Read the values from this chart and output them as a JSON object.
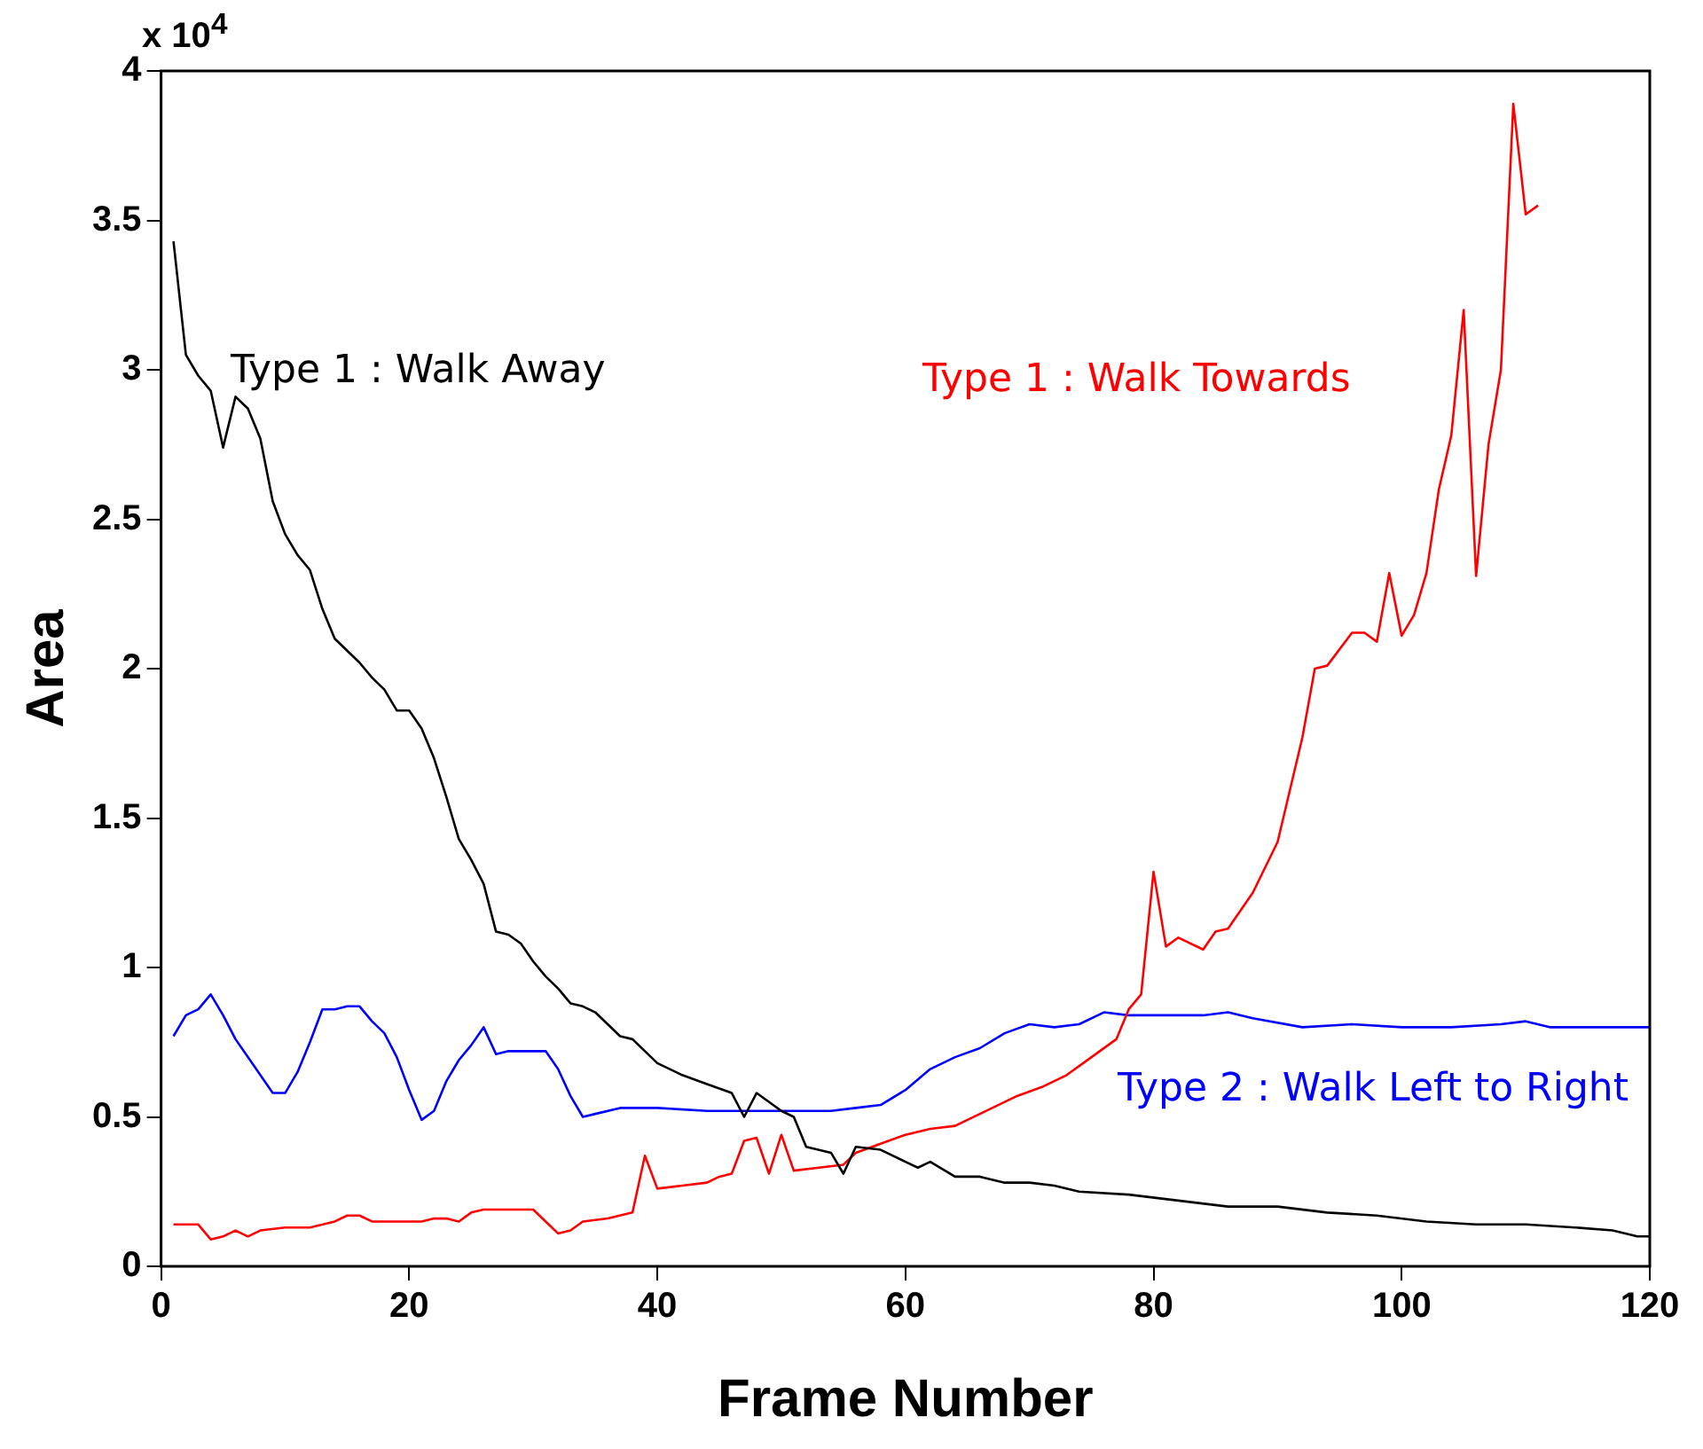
{
  "chart_data": {
    "type": "line",
    "xlabel": "Frame Number",
    "ylabel": "Area",
    "annotations": [
      "x 10$^{4}$"
    ],
    "xlim": [
      0,
      120
    ],
    "xticks": [
      0,
      20,
      40,
      60,
      80,
      100,
      120
    ],
    "ylim": [
      0,
      4
    ],
    "yticks": [
      0,
      0.5,
      1,
      1.5,
      2,
      2.5,
      3,
      3.5,
      4
    ],
    "grid": false,
    "legend": false,
    "marker": "none",
    "line_style": "solid",
    "series": [
      {
        "name": "Type 1 : Walk Away",
        "color": "#000000",
        "x": [
          1,
          2,
          3,
          4,
          5,
          6,
          7,
          8,
          9,
          10,
          11,
          12,
          13,
          14,
          15,
          16,
          17,
          18,
          19,
          20,
          21,
          22,
          23,
          24,
          25,
          26,
          27,
          28,
          29,
          30,
          31,
          32,
          33,
          34,
          35,
          36,
          37,
          38,
          39,
          40,
          42,
          44,
          46,
          47,
          48,
          50,
          51,
          52,
          54,
          55,
          56,
          58,
          60,
          61,
          62,
          64,
          66,
          68,
          70,
          72,
          74,
          78,
          82,
          86,
          90,
          94,
          98,
          102,
          106,
          110,
          114,
          117,
          119,
          120
        ],
        "values": [
          3.43,
          3.05,
          2.98,
          2.93,
          2.74,
          2.91,
          2.87,
          2.77,
          2.56,
          2.45,
          2.38,
          2.33,
          2.2,
          2.1,
          2.06,
          2.02,
          1.97,
          1.93,
          1.86,
          1.86,
          1.8,
          1.7,
          1.57,
          1.43,
          1.36,
          1.28,
          1.12,
          1.11,
          1.08,
          1.02,
          0.97,
          0.93,
          0.88,
          0.87,
          0.85,
          0.81,
          0.77,
          0.76,
          0.72,
          0.68,
          0.64,
          0.61,
          0.58,
          0.5,
          0.58,
          0.52,
          0.5,
          0.4,
          0.38,
          0.31,
          0.4,
          0.39,
          0.35,
          0.33,
          0.35,
          0.3,
          0.3,
          0.28,
          0.28,
          0.27,
          0.25,
          0.24,
          0.22,
          0.2,
          0.2,
          0.18,
          0.17,
          0.15,
          0.14,
          0.14,
          0.13,
          0.12,
          0.1,
          0.1
        ]
      },
      {
        "name": "Type 1 : Walk Towards",
        "color": "#ff0000",
        "x": [
          1,
          3,
          4,
          5,
          6,
          7,
          8,
          10,
          12,
          14,
          15,
          16,
          17,
          19,
          21,
          22,
          23,
          24,
          25,
          26,
          28,
          30,
          31,
          32,
          33,
          34,
          36,
          38,
          39,
          40,
          42,
          44,
          45,
          46,
          47,
          48,
          49,
          50,
          51,
          53,
          55,
          56,
          58,
          60,
          62,
          64,
          66,
          67,
          69,
          71,
          73,
          75,
          77,
          78,
          79,
          80,
          81,
          82,
          84,
          85,
          86,
          88,
          90,
          92,
          93,
          94,
          96,
          97,
          98,
          99,
          100,
          101,
          102,
          103,
          104,
          105,
          106,
          107,
          108,
          109,
          110,
          111
        ],
        "values": [
          0.14,
          0.14,
          0.09,
          0.1,
          0.12,
          0.1,
          0.12,
          0.13,
          0.13,
          0.15,
          0.17,
          0.17,
          0.15,
          0.15,
          0.15,
          0.16,
          0.16,
          0.15,
          0.18,
          0.19,
          0.19,
          0.19,
          0.15,
          0.11,
          0.12,
          0.15,
          0.16,
          0.18,
          0.37,
          0.26,
          0.27,
          0.28,
          0.3,
          0.31,
          0.42,
          0.43,
          0.31,
          0.44,
          0.32,
          0.33,
          0.34,
          0.38,
          0.41,
          0.44,
          0.46,
          0.47,
          0.51,
          0.53,
          0.57,
          0.6,
          0.64,
          0.7,
          0.76,
          0.86,
          0.91,
          1.32,
          1.07,
          1.1,
          1.06,
          1.12,
          1.13,
          1.25,
          1.42,
          1.77,
          2.0,
          2.01,
          2.12,
          2.12,
          2.09,
          2.32,
          2.11,
          2.18,
          2.32,
          2.6,
          2.78,
          3.2,
          2.31,
          2.75,
          3.0,
          3.89,
          3.52,
          3.55
        ]
      },
      {
        "name": "Type 2 : Walk Left to Right",
        "color": "#0000ff",
        "x": [
          1,
          2,
          3,
          4,
          5,
          6,
          7,
          8,
          9,
          10,
          11,
          12,
          13,
          14,
          15,
          16,
          17,
          18,
          19,
          20,
          21,
          22,
          23,
          24,
          25,
          26,
          27,
          28,
          30,
          31,
          32,
          33,
          34,
          35,
          37,
          40,
          44,
          50,
          54,
          56,
          58,
          60,
          62,
          64,
          66,
          68,
          70,
          72,
          74,
          76,
          78,
          84,
          86,
          88,
          92,
          96,
          100,
          104,
          108,
          110,
          112,
          118,
          120
        ],
        "values": [
          0.77,
          0.84,
          0.86,
          0.91,
          0.84,
          0.76,
          0.7,
          0.64,
          0.58,
          0.58,
          0.65,
          0.75,
          0.86,
          0.86,
          0.87,
          0.87,
          0.82,
          0.78,
          0.7,
          0.59,
          0.49,
          0.52,
          0.62,
          0.69,
          0.74,
          0.8,
          0.71,
          0.72,
          0.72,
          0.72,
          0.66,
          0.57,
          0.5,
          0.51,
          0.53,
          0.53,
          0.52,
          0.52,
          0.52,
          0.53,
          0.54,
          0.59,
          0.66,
          0.7,
          0.73,
          0.78,
          0.81,
          0.8,
          0.81,
          0.85,
          0.84,
          0.84,
          0.85,
          0.83,
          0.8,
          0.81,
          0.8,
          0.8,
          0.81,
          0.82,
          0.8,
          0.8,
          0.8
        ]
      }
    ]
  }
}
